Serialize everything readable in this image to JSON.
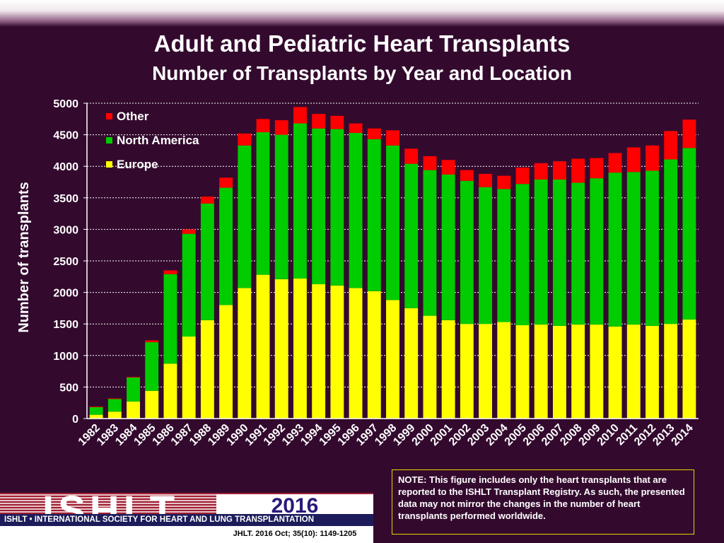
{
  "slide": {
    "title": "Adult and Pediatric Heart Transplants",
    "subtitle": "Number of Transplants by Year and Location",
    "note": "NOTE: This figure includes only the heart transplants that are reported to the ISHLT Transplant Registry. As such, the presented data may not mirror the changes in the number of heart transplants performed worldwide.",
    "logo": {
      "letters": "ISHLT",
      "year": "2016",
      "tagline": "ISHLT • INTERNATIONAL SOCIETY FOR HEART AND LUNG TRANSPLANTATION",
      "citation": "JHLT. 2016 Oct; 35(10): 1149-1205"
    }
  },
  "chart_data": {
    "type": "bar",
    "stacked": true,
    "categories": [
      "1982",
      "1983",
      "1984",
      "1985",
      "1986",
      "1987",
      "1988",
      "1989",
      "1990",
      "1991",
      "1992",
      "1993",
      "1994",
      "1995",
      "1996",
      "1997",
      "1998",
      "1999",
      "2000",
      "2001",
      "2002",
      "2003",
      "2004",
      "2005",
      "2006",
      "2007",
      "2008",
      "2009",
      "2010",
      "2011",
      "2012",
      "2013",
      "2014"
    ],
    "series": [
      {
        "name": "Europe",
        "color": "#ffff00",
        "values": [
          60,
          110,
          270,
          440,
          870,
          1300,
          1560,
          1800,
          2070,
          2280,
          2210,
          2220,
          2130,
          2110,
          2070,
          2020,
          1880,
          1750,
          1630,
          1560,
          1500,
          1500,
          1530,
          1480,
          1490,
          1470,
          1490,
          1490,
          1460,
          1490,
          1470,
          1500,
          1570
        ]
      },
      {
        "name": "North America",
        "color": "#00cc00",
        "values": [
          120,
          200,
          380,
          770,
          1420,
          1630,
          1850,
          1860,
          2260,
          2260,
          2290,
          2460,
          2470,
          2480,
          2460,
          2410,
          2450,
          2290,
          2310,
          2310,
          2270,
          2170,
          2110,
          2240,
          2300,
          2320,
          2250,
          2320,
          2440,
          2420,
          2460,
          2610,
          2720
        ]
      },
      {
        "name": "Other",
        "color": "#ff0000",
        "values": [
          10,
          10,
          10,
          30,
          60,
          70,
          110,
          160,
          190,
          210,
          230,
          260,
          230,
          210,
          150,
          170,
          240,
          240,
          220,
          230,
          170,
          210,
          210,
          260,
          260,
          290,
          380,
          320,
          310,
          390,
          400,
          450,
          450
        ]
      }
    ],
    "ylabel": "Number of transplants",
    "ylim": [
      0,
      5000
    ],
    "yticks": [
      0,
      500,
      1000,
      1500,
      2000,
      2500,
      3000,
      3500,
      4000,
      4500,
      5000
    ],
    "grid": true,
    "legend": {
      "placement": "top-left",
      "order": [
        "Other",
        "North America",
        "Europe"
      ]
    }
  }
}
